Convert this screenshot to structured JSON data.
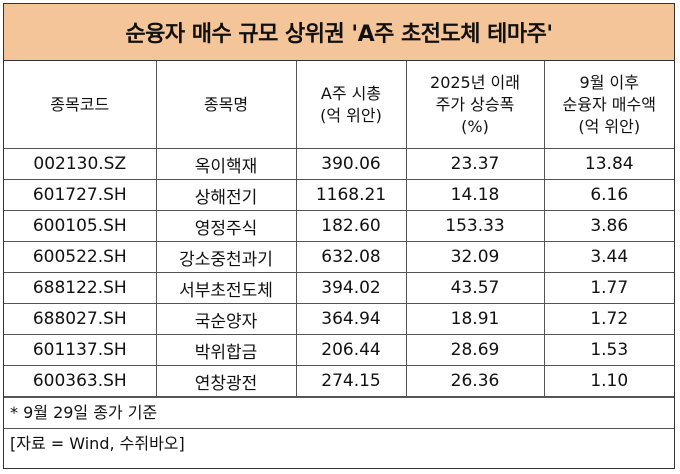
{
  "title": "순융자 매수 규모 상위권 'A주 초전도체 테마주'",
  "headers": [
    [
      "종목코드"
    ],
    [
      "종목명"
    ],
    [
      "A주 시총",
      "(억 위안)"
    ],
    [
      "2025년 이래",
      "주가 상승폭",
      "(%)"
    ],
    [
      "9월 이후",
      "순융자 매수액",
      "(억 위안)"
    ]
  ],
  "rows": [
    [
      "002130.SZ",
      "옥이핵재",
      "390.06",
      "23.37",
      "13.84"
    ],
    [
      "601727.SH",
      "상해전기",
      "1168.21",
      "14.18",
      "6.16"
    ],
    [
      "600105.SH",
      "영정주식",
      "182.60",
      "153.33",
      "3.86"
    ],
    [
      "600522.SH",
      "강소중천과기",
      "632.08",
      "32.09",
      "3.44"
    ],
    [
      "688122.SH",
      "서부초전도체",
      "394.02",
      "43.57",
      "1.77"
    ],
    [
      "688027.SH",
      "국순양자",
      "364.94",
      "18.91",
      "1.72"
    ],
    [
      "601137.SH",
      "박위합금",
      "206.44",
      "28.69",
      "1.53"
    ],
    [
      "600363.SH",
      "연창광전",
      "274.15",
      "26.36",
      "1.10"
    ]
  ],
  "notes": [
    "* 9월 29일 종가 기준",
    "[자료 = Wind, 수쥐바오]"
  ]
}
